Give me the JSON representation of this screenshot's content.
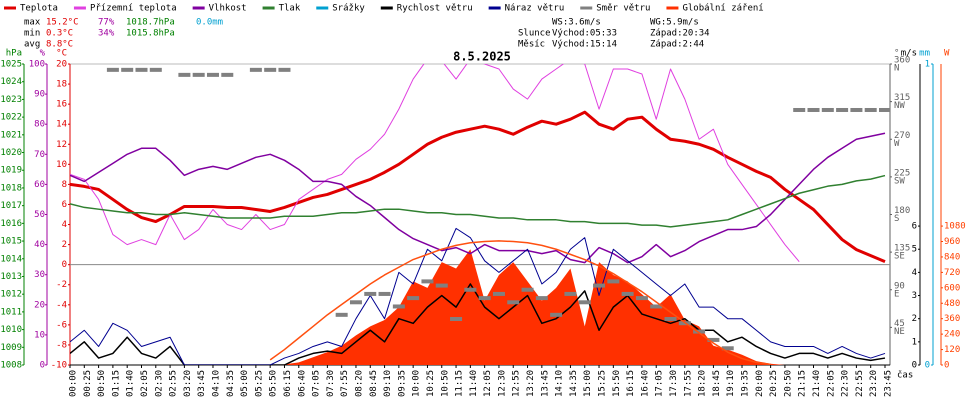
{
  "chart_data": {
    "type": "line",
    "title": "8.5.2025",
    "x_label": "čas",
    "categories": [
      "00:00",
      "00:25",
      "00:50",
      "01:15",
      "01:40",
      "02:05",
      "02:30",
      "02:55",
      "03:20",
      "03:45",
      "04:10",
      "04:35",
      "05:00",
      "05:25",
      "05:50",
      "06:15",
      "06:40",
      "07:05",
      "07:30",
      "07:55",
      "08:20",
      "08:45",
      "09:10",
      "09:35",
      "10:00",
      "10:25",
      "10:50",
      "11:15",
      "11:40",
      "12:05",
      "12:30",
      "12:55",
      "13:20",
      "13:45",
      "14:10",
      "14:35",
      "15:00",
      "15:25",
      "15:50",
      "16:15",
      "16:40",
      "17:05",
      "17:30",
      "17:55",
      "18:20",
      "18:45",
      "19:10",
      "19:35",
      "20:00",
      "20:25",
      "20:50",
      "21:15",
      "21:40",
      "22:05",
      "22:30",
      "22:55",
      "23:20",
      "23:45"
    ],
    "axes": {
      "hpa": {
        "label": "hPa",
        "color": "#008000",
        "ylim": [
          1008,
          1025
        ],
        "yticks": [
          1008,
          1009,
          1010,
          1011,
          1012,
          1013,
          1014,
          1015,
          1016,
          1017,
          1018,
          1019,
          1020,
          1021,
          1022,
          1023,
          1024,
          1025
        ]
      },
      "pct": {
        "label": "%",
        "color": "#a000a0",
        "ylim": [
          0,
          100
        ],
        "yticks": [
          0,
          10,
          20,
          30,
          40,
          50,
          60,
          70,
          80,
          90,
          100
        ]
      },
      "temp": {
        "label": "°C",
        "color": "#e00000",
        "ylim": [
          -10,
          20
        ],
        "yticks": [
          -10,
          -8,
          -6,
          -4,
          -2,
          0,
          2,
          4,
          6,
          8,
          10,
          12,
          14,
          16,
          18,
          20
        ]
      },
      "deg": {
        "label": "°",
        "color": "#606060",
        "ylim": [
          0,
          360
        ],
        "yticks": [
          45,
          90,
          135,
          180,
          225,
          270,
          315,
          360
        ],
        "compass": [
          "NE",
          "E",
          "SE",
          "S",
          "SW",
          "W",
          "NW",
          "N"
        ]
      },
      "ms": {
        "label": "m/s",
        "color": "#000000",
        "ylim": [
          0,
          13
        ],
        "yticks": [
          0,
          1,
          2,
          3,
          4,
          5,
          6
        ]
      },
      "mm": {
        "label": "mm",
        "color": "#00a0d0",
        "ylim": [
          0,
          1
        ],
        "yticks": [
          0,
          1
        ]
      },
      "w": {
        "label": "W",
        "color": "#ff4000",
        "ylim": [
          0,
          2340
        ],
        "yticks": [
          0,
          120,
          240,
          360,
          480,
          600,
          720,
          840,
          960,
          1080
        ]
      }
    },
    "series": [
      {
        "name": "Teplota",
        "color": "#e00000",
        "axis": "temp",
        "width": 3,
        "values": [
          8.0,
          7.8,
          7.5,
          6.5,
          5.5,
          4.7,
          4.3,
          5.0,
          5.8,
          5.8,
          5.8,
          5.7,
          5.7,
          5.5,
          5.3,
          5.7,
          6.2,
          6.7,
          7.0,
          7.5,
          8.0,
          8.5,
          9.2,
          10.0,
          11.0,
          12.0,
          12.7,
          13.2,
          13.5,
          13.8,
          13.5,
          13.0,
          13.7,
          14.3,
          14.0,
          14.5,
          15.2,
          14.0,
          13.5,
          14.5,
          14.7,
          13.5,
          12.5,
          12.3,
          12.0,
          11.5,
          10.7,
          10.0,
          9.3,
          8.7,
          7.5,
          6.5,
          5.5,
          4.0,
          2.5,
          1.5,
          0.9,
          0.3
        ]
      },
      {
        "name": "Přízemní teplota",
        "color": "#e040e0",
        "axis": "temp",
        "width": 1,
        "values": [
          9.0,
          8.5,
          6.5,
          3.0,
          2.0,
          2.5,
          2.0,
          5.0,
          2.5,
          3.5,
          5.5,
          4.0,
          3.5,
          5.0,
          3.5,
          4.0,
          6.5,
          7.5,
          8.5,
          9.0,
          10.5,
          11.5,
          13.0,
          15.5,
          18.5,
          20.5,
          20.3,
          18.5,
          20.5,
          20.0,
          19.5,
          17.5,
          16.5,
          18.5,
          19.5,
          20.5,
          20.0,
          15.5,
          19.5,
          19.5,
          19.0,
          14.5,
          19.5,
          16.5,
          12.5,
          13.5,
          10.0,
          8.0,
          6.0,
          4.0,
          2.0,
          0.3,
          null,
          null,
          null,
          null,
          null,
          null
        ]
      },
      {
        "name": "Vlhkost",
        "color": "#8000a0",
        "axis": "pct",
        "width": 1.5,
        "values": [
          63,
          61,
          64,
          67,
          70,
          72,
          72,
          68,
          63,
          65,
          66,
          65,
          67,
          69,
          70,
          68,
          65,
          61,
          61,
          60,
          56,
          53,
          49,
          45,
          42,
          40,
          38,
          39,
          37,
          40,
          38,
          38,
          38,
          37,
          38,
          35,
          34,
          39,
          37,
          34,
          36,
          40,
          36,
          38,
          41,
          43,
          45,
          45,
          46,
          50,
          55,
          60,
          65,
          69,
          72,
          75,
          76,
          77
        ]
      },
      {
        "name": "Tlak",
        "color": "#308030",
        "axis": "hpa",
        "width": 1.5,
        "values": [
          1017.1,
          1016.9,
          1016.8,
          1016.7,
          1016.6,
          1016.6,
          1016.5,
          1016.5,
          1016.6,
          1016.5,
          1016.4,
          1016.3,
          1016.3,
          1016.3,
          1016.3,
          1016.4,
          1016.4,
          1016.4,
          1016.5,
          1016.6,
          1016.6,
          1016.7,
          1016.8,
          1016.8,
          1016.7,
          1016.6,
          1016.6,
          1016.5,
          1016.5,
          1016.4,
          1016.3,
          1016.3,
          1016.2,
          1016.2,
          1016.2,
          1016.1,
          1016.1,
          1016.0,
          1016.0,
          1016.0,
          1015.9,
          1015.9,
          1015.8,
          1015.9,
          1016.0,
          1016.1,
          1016.2,
          1016.5,
          1016.8,
          1017.1,
          1017.4,
          1017.7,
          1017.9,
          1018.1,
          1018.2,
          1018.4,
          1018.5,
          1018.7
        ]
      },
      {
        "name": "Srážky",
        "color": "#00a0d0",
        "axis": "mm"
      },
      {
        "name": "Rychlost větru",
        "color": "#000000",
        "axis": "ms",
        "width": 1.5,
        "values": [
          0.5,
          1.0,
          0.3,
          0.5,
          1.2,
          0.5,
          0.3,
          0.8,
          0,
          0,
          0,
          0,
          0,
          0,
          0,
          0,
          0.3,
          0.5,
          0.6,
          0.5,
          1.0,
          1.5,
          1.0,
          2.0,
          1.8,
          2.5,
          3.0,
          2.5,
          3.5,
          2.5,
          2.0,
          2.5,
          3.0,
          1.8,
          2.0,
          2.5,
          3.2,
          1.5,
          2.5,
          3.0,
          2.2,
          2.0,
          1.8,
          2.0,
          1.5,
          1.5,
          1.0,
          1.2,
          0.8,
          0.5,
          0.3,
          0.5,
          0.5,
          0.3,
          0.5,
          0.3,
          0.2,
          0.3
        ]
      },
      {
        "name": "Náraz větru",
        "color": "#000090",
        "axis": "ms",
        "width": 1,
        "values": [
          1.0,
          1.5,
          0.8,
          1.8,
          1.5,
          0.8,
          1.0,
          1.2,
          0,
          0,
          0,
          0,
          0,
          0,
          0,
          0.3,
          0.5,
          0.8,
          1.0,
          0.8,
          2.0,
          3.0,
          2.0,
          4.0,
          3.5,
          5.0,
          4.5,
          5.9,
          5.5,
          4.5,
          4.0,
          4.5,
          5.0,
          3.5,
          4.0,
          5.0,
          5.5,
          3.0,
          5.0,
          4.5,
          4.0,
          3.5,
          3.0,
          3.5,
          2.5,
          2.5,
          2.0,
          2.0,
          1.5,
          1.0,
          0.8,
          0.8,
          0.8,
          0.5,
          0.8,
          0.5,
          0.3,
          0.5
        ]
      },
      {
        "name": "Směr větru",
        "color": "#808080",
        "axis": "deg",
        "mark": "dash",
        "values": [
          null,
          null,
          null,
          353,
          353,
          353,
          353,
          null,
          347,
          347,
          347,
          347,
          null,
          353,
          353,
          353,
          null,
          null,
          null,
          60,
          75,
          85,
          85,
          70,
          80,
          100,
          95,
          55,
          90,
          80,
          85,
          75,
          90,
          80,
          60,
          85,
          75,
          95,
          100,
          85,
          80,
          70,
          55,
          50,
          40,
          30,
          20,
          null,
          null,
          null,
          null,
          305,
          305,
          305,
          305,
          305,
          305,
          305
        ]
      },
      {
        "name": "Globální záření",
        "color": "#ff3000",
        "axis": "w",
        "mark": "area",
        "values": [
          0,
          0,
          0,
          0,
          0,
          0,
          0,
          0,
          0,
          0,
          0,
          0,
          0,
          0,
          0,
          5,
          20,
          60,
          100,
          150,
          230,
          300,
          350,
          450,
          650,
          600,
          800,
          750,
          900,
          500,
          700,
          800,
          650,
          500,
          600,
          750,
          300,
          800,
          700,
          650,
          550,
          450,
          550,
          350,
          300,
          150,
          120,
          80,
          30,
          10,
          0,
          0,
          0,
          0,
          0,
          0,
          0,
          0
        ]
      },
      {
        "color": "#ff5010",
        "axis": "w",
        "width": 1.5,
        "values": [
          null,
          null,
          null,
          null,
          null,
          null,
          null,
          null,
          null,
          null,
          null,
          null,
          null,
          null,
          40,
          120,
          210,
          300,
          390,
          470,
          550,
          630,
          700,
          760,
          820,
          860,
          900,
          930,
          950,
          960,
          965,
          960,
          950,
          930,
          900,
          860,
          820,
          770,
          710,
          640,
          570,
          490,
          410,
          330,
          250,
          170,
          100,
          50,
          20,
          5,
          null,
          null,
          null,
          null,
          null,
          null,
          null,
          null
        ]
      }
    ],
    "stats": [
      {
        "label": "max",
        "temp": "15.2°C",
        "humidity": "77%",
        "pressure": "1018.7hPa",
        "rain": "0.0mm"
      },
      {
        "label": "min",
        "temp": "0.3°C",
        "humidity": "34%",
        "pressure": "1015.8hPa"
      },
      {
        "label": "avg",
        "temp": "8.8°C"
      }
    ],
    "info": {
      "wind": [
        "WS:3.6m/s",
        "WG:5.9m/s"
      ],
      "sun": [
        "Slunce",
        "Východ:05:33",
        "Západ:20:34"
      ],
      "moon": [
        "Měsíc",
        "Východ:15:14",
        "Západ:2:44"
      ]
    }
  }
}
